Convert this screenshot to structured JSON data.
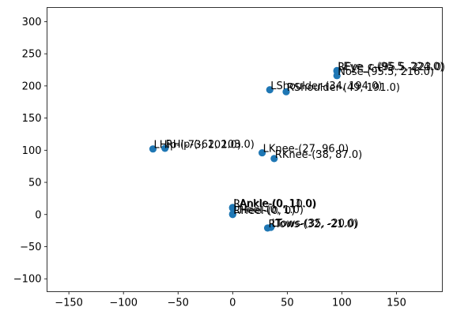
{
  "chart_data": {
    "type": "scatter",
    "title": "",
    "xlabel": "",
    "ylabel": "",
    "xlim": [
      -170,
      192
    ],
    "ylim": [
      -120,
      322
    ],
    "xticks": [
      -150,
      -100,
      -50,
      0,
      50,
      100,
      150
    ],
    "yticks": [
      -100,
      -50,
      0,
      50,
      100,
      150,
      200,
      250,
      300
    ],
    "grid": false,
    "legend": "none",
    "marker_color": "#1f77b4",
    "points": [
      {
        "label": "LEye_c-(95.5, 224.0)",
        "x": 95.5,
        "y": 224.0
      },
      {
        "label": "REye_c-(95.5, 223.0)",
        "x": 95.5,
        "y": 223.0
      },
      {
        "label": "Nose-(95.5, 216.0)",
        "x": 95.5,
        "y": 216.0
      },
      {
        "label": "LShoulder-(34, 194.0)",
        "x": 34,
        "y": 194.0
      },
      {
        "label": "RShoulder-(49, 191.0)",
        "x": 49,
        "y": 191.0
      },
      {
        "label": "LHip-(-73, 102.0)",
        "x": -73,
        "y": 102.0
      },
      {
        "label": "RHip-(-62, 103.0)",
        "x": -62,
        "y": 103.0
      },
      {
        "label": "LKnee-(27, 96.0)",
        "x": 27,
        "y": 96.0
      },
      {
        "label": "RKnee-(38, 87.0)",
        "x": 38,
        "y": 87.0
      },
      {
        "label": "LAnkle-(0, 11.0)",
        "x": 0,
        "y": 11.0
      },
      {
        "label": "RAnkle-(0, 10.0)",
        "x": 0,
        "y": 10.0
      },
      {
        "label": "LHeel-(0, 1.0)",
        "x": 0,
        "y": 1.0
      },
      {
        "label": "RHeel-(0, 0)",
        "x": 0,
        "y": 0
      },
      {
        "label": "LTows-(35, -20.0)",
        "x": 35,
        "y": -20.0
      },
      {
        "label": "RTows-(32, -21.0)",
        "x": 32,
        "y": -21.0
      }
    ]
  }
}
